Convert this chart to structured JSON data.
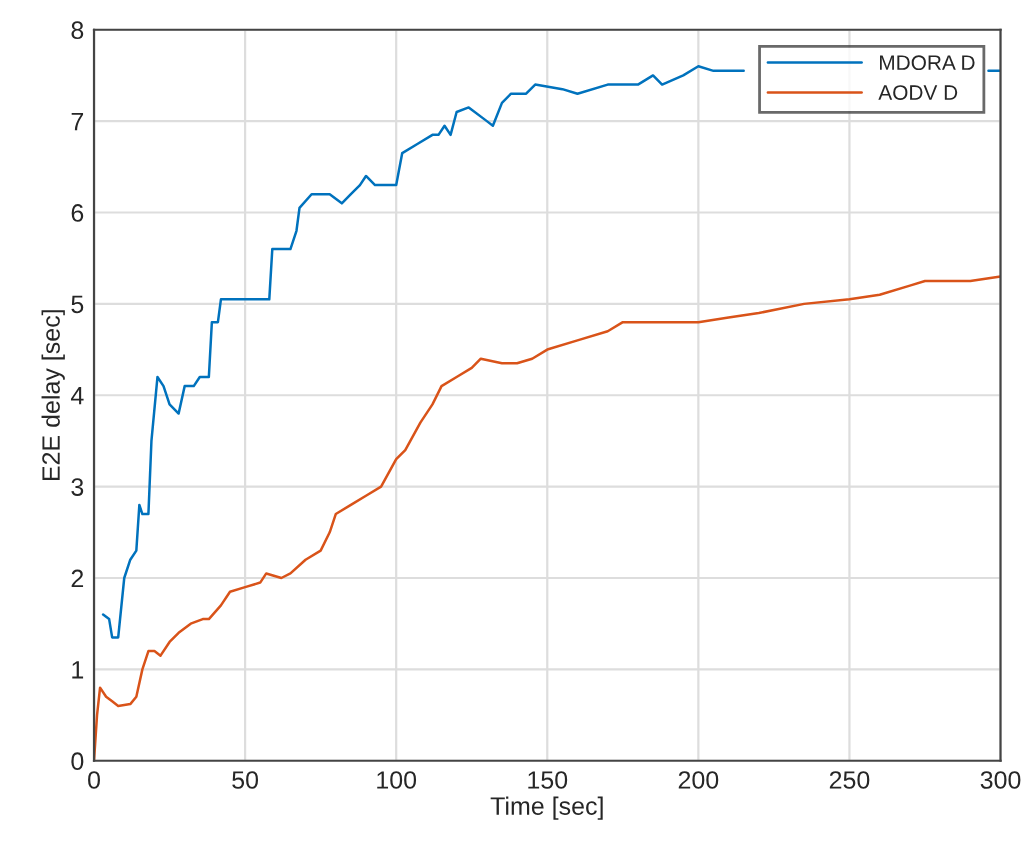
{
  "chart_data": {
    "type": "line",
    "xlabel": "Time [sec]",
    "ylabel": "E2E delay [sec]",
    "xlim": [
      0,
      300
    ],
    "xticks": [
      0,
      50,
      100,
      150,
      200,
      250,
      300
    ],
    "ylim": [
      0,
      8
    ],
    "yticks": [
      0,
      1,
      2,
      3,
      4,
      5,
      6,
      7,
      8
    ],
    "grid": true,
    "legend": "top right",
    "line_style": "solid",
    "marker": "none",
    "series": [
      {
        "name": "MDORA D",
        "color": "#0072bd",
        "x": [
          3,
          5,
          6,
          8,
          10,
          12,
          14,
          15,
          16,
          18,
          19,
          21,
          23,
          25,
          28,
          30,
          33,
          35,
          38,
          39,
          41,
          42,
          58,
          59,
          63,
          65,
          67,
          68,
          72,
          78,
          82,
          85,
          88,
          90,
          93,
          100,
          102,
          107,
          112,
          114,
          116,
          118,
          120,
          124,
          130,
          132,
          135,
          138,
          143,
          146,
          155,
          160,
          170,
          180,
          185,
          188,
          195,
          200,
          205,
          215,
          220,
          285,
          296,
          300
        ],
        "values": [
          1.6,
          1.55,
          1.35,
          1.35,
          2.0,
          2.2,
          2.3,
          2.8,
          2.7,
          2.7,
          3.5,
          4.2,
          4.1,
          3.9,
          3.8,
          4.1,
          4.1,
          4.2,
          4.2,
          4.8,
          4.8,
          5.05,
          5.05,
          5.6,
          5.6,
          5.6,
          5.8,
          6.05,
          6.2,
          6.2,
          6.1,
          6.2,
          6.3,
          6.4,
          6.3,
          6.3,
          6.65,
          6.75,
          6.85,
          6.85,
          6.95,
          6.85,
          7.1,
          7.15,
          7.0,
          6.95,
          7.2,
          7.3,
          7.3,
          7.4,
          7.35,
          7.3,
          7.4,
          7.4,
          7.5,
          7.4,
          7.5,
          7.6,
          7.55,
          7.55,
          null,
          null,
          7.55,
          7.55
        ]
      },
      {
        "name": "AODV D",
        "color": "#d95319",
        "x": [
          0,
          1,
          2,
          4,
          6,
          8,
          12,
          14,
          16,
          18,
          20,
          22,
          25,
          28,
          32,
          36,
          38,
          42,
          45,
          50,
          55,
          57,
          62,
          65,
          70,
          75,
          78,
          80,
          85,
          90,
          95,
          100,
          103,
          108,
          112,
          115,
          120,
          125,
          128,
          135,
          140,
          145,
          150,
          160,
          170,
          175,
          190,
          200,
          210,
          220,
          235,
          250,
          260,
          270,
          275,
          290,
          300
        ],
        "values": [
          0,
          0.5,
          0.8,
          0.7,
          0.65,
          0.6,
          0.62,
          0.7,
          1.0,
          1.2,
          1.2,
          1.15,
          1.3,
          1.4,
          1.5,
          1.55,
          1.55,
          1.7,
          1.85,
          1.9,
          1.95,
          2.05,
          2.0,
          2.05,
          2.2,
          2.3,
          2.5,
          2.7,
          2.8,
          2.9,
          3.0,
          3.3,
          3.4,
          3.7,
          3.9,
          4.1,
          4.2,
          4.3,
          4.4,
          4.35,
          4.35,
          4.4,
          4.5,
          4.6,
          4.7,
          4.8,
          4.8,
          4.8,
          4.85,
          4.9,
          5.0,
          5.05,
          5.1,
          5.2,
          5.25,
          5.25,
          5.3
        ]
      }
    ]
  }
}
